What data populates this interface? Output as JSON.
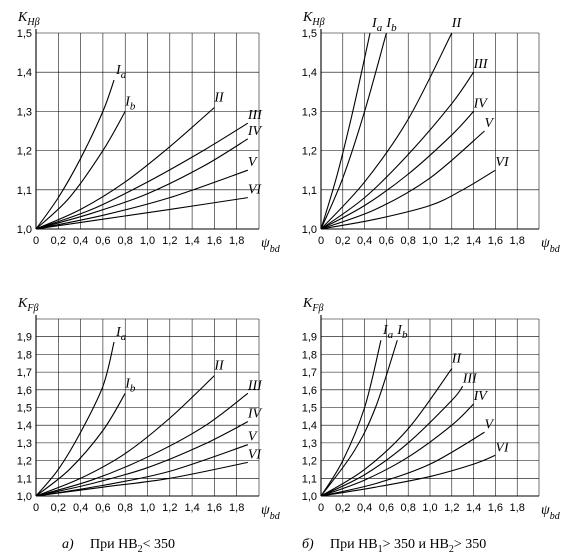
{
  "chart_data": [
    {
      "type": "line",
      "ylabel": "K_Hβ",
      "ylabel_main": "K",
      "ylabel_sub": "Hβ",
      "xlabel": "ψ_bd",
      "xlabel_main": "ψ",
      "xlabel_sub": "bd",
      "xlim": [
        0,
        2.0
      ],
      "ylim": [
        1.0,
        1.5
      ],
      "x_ticks": [
        "0",
        "0,2",
        "0,4",
        "0,6",
        "0,8",
        "1,0",
        "1,2",
        "1,4",
        "1,6",
        "1,8"
      ],
      "x_tick_values": [
        0,
        0.2,
        0.4,
        0.6,
        0.8,
        1.0,
        1.2,
        1.4,
        1.6,
        1.8
      ],
      "y_ticks": [
        "1,0",
        "1,1",
        "1,2",
        "1,3",
        "1,4",
        "1,5"
      ],
      "y_tick_values": [
        1.0,
        1.1,
        1.2,
        1.3,
        1.4,
        1.5
      ],
      "grid": true,
      "series": [
        {
          "name": "I",
          "sub": "a",
          "x": [
            0,
            0.2,
            0.4,
            0.6,
            0.7
          ],
          "y": [
            1.0,
            1.08,
            1.18,
            1.3,
            1.38
          ]
        },
        {
          "name": "I",
          "sub": "b",
          "x": [
            0,
            0.3,
            0.6,
            0.8
          ],
          "y": [
            1.0,
            1.08,
            1.2,
            1.3
          ]
        },
        {
          "name": "II",
          "sub": "",
          "x": [
            0,
            0.4,
            0.8,
            1.2,
            1.6
          ],
          "y": [
            1.0,
            1.05,
            1.12,
            1.21,
            1.31
          ]
        },
        {
          "name": "III",
          "sub": "",
          "x": [
            0,
            0.5,
            1.0,
            1.5,
            1.9
          ],
          "y": [
            1.0,
            1.05,
            1.12,
            1.2,
            1.27
          ]
        },
        {
          "name": "IV",
          "sub": "",
          "x": [
            0,
            0.5,
            1.0,
            1.5,
            1.9
          ],
          "y": [
            1.0,
            1.04,
            1.09,
            1.16,
            1.23
          ]
        },
        {
          "name": "V",
          "sub": "",
          "x": [
            0,
            0.6,
            1.2,
            1.9
          ],
          "y": [
            1.0,
            1.035,
            1.08,
            1.15
          ]
        },
        {
          "name": "VI",
          "sub": "",
          "x": [
            0,
            0.6,
            1.2,
            1.9
          ],
          "y": [
            1.0,
            1.025,
            1.05,
            1.08
          ]
        }
      ]
    },
    {
      "type": "line",
      "ylabel": "K_Hβ",
      "ylabel_main": "K",
      "ylabel_sub": "Hβ",
      "xlabel": "ψ_bd",
      "xlabel_main": "ψ",
      "xlabel_sub": "bd",
      "xlim": [
        0,
        2.0
      ],
      "ylim": [
        1.0,
        1.5
      ],
      "x_ticks": [
        "0",
        "0,2",
        "0,4",
        "0,6",
        "0,8",
        "1,0",
        "1,2",
        "1,4",
        "1,6",
        "1,8"
      ],
      "x_tick_values": [
        0,
        0.2,
        0.4,
        0.6,
        0.8,
        1.0,
        1.2,
        1.4,
        1.6,
        1.8
      ],
      "y_ticks": [
        "1,0",
        "1,1",
        "1,2",
        "1,3",
        "1,4",
        "1,5"
      ],
      "y_tick_values": [
        1.0,
        1.1,
        1.2,
        1.3,
        1.4,
        1.5
      ],
      "grid": true,
      "series": [
        {
          "name": "I",
          "sub": "a",
          "x": [
            0,
            0.15,
            0.3,
            0.45
          ],
          "y": [
            1.0,
            1.14,
            1.31,
            1.5
          ]
        },
        {
          "name": "I",
          "sub": "b",
          "x": [
            0,
            0.2,
            0.4,
            0.6
          ],
          "y": [
            1.0,
            1.13,
            1.3,
            1.5
          ]
        },
        {
          "name": "II",
          "sub": "",
          "x": [
            0,
            0.4,
            0.8,
            1.2
          ],
          "y": [
            1.0,
            1.12,
            1.28,
            1.5
          ]
        },
        {
          "name": "III",
          "sub": "",
          "x": [
            0,
            0.4,
            0.8,
            1.2,
            1.4
          ],
          "y": [
            1.0,
            1.08,
            1.19,
            1.32,
            1.4
          ]
        },
        {
          "name": "IV",
          "sub": "",
          "x": [
            0,
            0.4,
            0.8,
            1.2,
            1.4
          ],
          "y": [
            1.0,
            1.06,
            1.14,
            1.24,
            1.3
          ]
        },
        {
          "name": "V",
          "sub": "",
          "x": [
            0,
            0.5,
            1.0,
            1.5
          ],
          "y": [
            1.0,
            1.05,
            1.13,
            1.25
          ]
        },
        {
          "name": "VI",
          "sub": "",
          "x": [
            0,
            0.5,
            1.0,
            1.3,
            1.6
          ],
          "y": [
            1.0,
            1.025,
            1.06,
            1.1,
            1.15
          ]
        }
      ]
    },
    {
      "type": "line",
      "ylabel": "K_Fβ",
      "ylabel_main": "K",
      "ylabel_sub": "Fβ",
      "xlabel": "ψ_bd",
      "xlabel_main": "ψ",
      "xlabel_sub": "bd",
      "xlim": [
        0,
        2.0
      ],
      "ylim": [
        1.0,
        2.0
      ],
      "x_ticks": [
        "0",
        "0,2",
        "0,4",
        "0,6",
        "0,8",
        "1,0",
        "1,2",
        "1,4",
        "1,6",
        "1,8"
      ],
      "x_tick_values": [
        0,
        0.2,
        0.4,
        0.6,
        0.8,
        1.0,
        1.2,
        1.4,
        1.6,
        1.8
      ],
      "y_ticks": [
        "1,0",
        "1,1",
        "1,2",
        "1,3",
        "1,4",
        "1,5",
        "1,6",
        "1,7",
        "1,8",
        "1,9"
      ],
      "y_tick_values": [
        1.0,
        1.1,
        1.2,
        1.3,
        1.4,
        1.5,
        1.6,
        1.7,
        1.8,
        1.9
      ],
      "grid": true,
      "series": [
        {
          "name": "I",
          "sub": "a",
          "x": [
            0,
            0.2,
            0.4,
            0.6,
            0.7
          ],
          "y": [
            1.0,
            1.15,
            1.36,
            1.62,
            1.87
          ]
        },
        {
          "name": "I",
          "sub": "b",
          "x": [
            0,
            0.3,
            0.6,
            0.8
          ],
          "y": [
            1.0,
            1.15,
            1.37,
            1.58
          ]
        },
        {
          "name": "II",
          "sub": "",
          "x": [
            0,
            0.4,
            0.8,
            1.2,
            1.6
          ],
          "y": [
            1.0,
            1.1,
            1.24,
            1.44,
            1.68
          ]
        },
        {
          "name": "III",
          "sub": "",
          "x": [
            0,
            0.5,
            1.0,
            1.5,
            1.9
          ],
          "y": [
            1.0,
            1.09,
            1.22,
            1.39,
            1.58
          ]
        },
        {
          "name": "IV",
          "sub": "",
          "x": [
            0,
            0.5,
            1.0,
            1.5,
            1.9
          ],
          "y": [
            1.0,
            1.07,
            1.16,
            1.29,
            1.42
          ]
        },
        {
          "name": "V",
          "sub": "",
          "x": [
            0,
            0.6,
            1.2,
            1.9
          ],
          "y": [
            1.0,
            1.06,
            1.14,
            1.29
          ]
        },
        {
          "name": "VI",
          "sub": "",
          "x": [
            0,
            0.6,
            1.2,
            1.9
          ],
          "y": [
            1.0,
            1.05,
            1.1,
            1.19
          ]
        }
      ]
    },
    {
      "type": "line",
      "ylabel": "K_Fβ",
      "ylabel_main": "K",
      "ylabel_sub": "Fβ",
      "xlabel": "ψ_bd",
      "xlabel_main": "ψ",
      "xlabel_sub": "bd",
      "xlim": [
        0,
        2.0
      ],
      "ylim": [
        1.0,
        2.0
      ],
      "x_ticks": [
        "0",
        "0,2",
        "0,4",
        "0,6",
        "0,8",
        "1,0",
        "1,2",
        "1,4",
        "1,6",
        "1,8"
      ],
      "x_tick_values": [
        0,
        0.2,
        0.4,
        0.6,
        0.8,
        1.0,
        1.2,
        1.4,
        1.6,
        1.8
      ],
      "y_ticks": [
        "1,0",
        "1,1",
        "1,2",
        "1,3",
        "1,4",
        "1,5",
        "1,6",
        "1,7",
        "1,8",
        "1,9"
      ],
      "y_tick_values": [
        1.0,
        1.1,
        1.2,
        1.3,
        1.4,
        1.5,
        1.6,
        1.7,
        1.8,
        1.9
      ],
      "grid": true,
      "series": [
        {
          "name": "I",
          "sub": "a",
          "x": [
            0,
            0.2,
            0.4,
            0.55
          ],
          "y": [
            1.0,
            1.2,
            1.5,
            1.88
          ]
        },
        {
          "name": "I",
          "sub": "b",
          "x": [
            0,
            0.3,
            0.5,
            0.7
          ],
          "y": [
            1.0,
            1.25,
            1.5,
            1.88
          ]
        },
        {
          "name": "II",
          "sub": "",
          "x": [
            0,
            0.4,
            0.8,
            1.2
          ],
          "y": [
            1.0,
            1.15,
            1.38,
            1.72
          ]
        },
        {
          "name": "III",
          "sub": "",
          "x": [
            0,
            0.4,
            0.8,
            1.2,
            1.3
          ],
          "y": [
            1.0,
            1.12,
            1.3,
            1.54,
            1.62
          ]
        },
        {
          "name": "IV",
          "sub": "",
          "x": [
            0,
            0.4,
            0.8,
            1.2,
            1.4
          ],
          "y": [
            1.0,
            1.09,
            1.22,
            1.4,
            1.52
          ]
        },
        {
          "name": "V",
          "sub": "",
          "x": [
            0,
            0.5,
            1.0,
            1.5
          ],
          "y": [
            1.0,
            1.07,
            1.18,
            1.36
          ]
        },
        {
          "name": "VI",
          "sub": "",
          "x": [
            0,
            0.5,
            1.0,
            1.4,
            1.6
          ],
          "y": [
            1.0,
            1.05,
            1.11,
            1.18,
            1.23
          ]
        }
      ]
    }
  ],
  "captions": {
    "a_letter": "а)",
    "a_text_main": "При HB",
    "a_text_sub": "2",
    "a_text_tail": "< 350",
    "b_letter": "б)",
    "b_text_main": "При HB",
    "b_text_sub1": "1",
    "b_text_mid": "> 350 и HB",
    "b_text_sub2": "2",
    "b_text_tail": "> 350"
  }
}
